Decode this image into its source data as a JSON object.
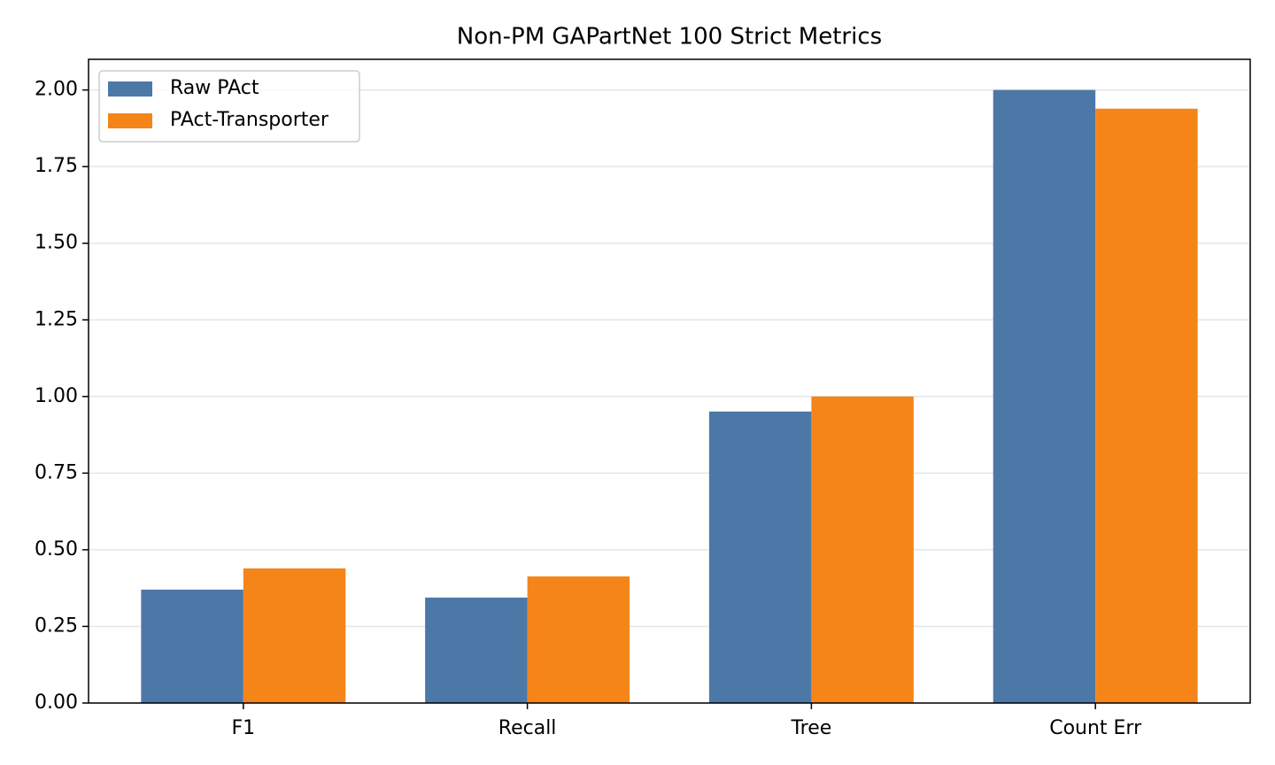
{
  "chart_data": {
    "type": "bar",
    "title": "Non-PM GAPartNet 100 Strict Metrics",
    "categories": [
      "F1",
      "Recall",
      "Tree",
      "Count Err"
    ],
    "series": [
      {
        "name": "Raw PAct",
        "color": "#4c78a8",
        "values": [
          0.37,
          0.344,
          0.951,
          2.0
        ]
      },
      {
        "name": "PAct-Transporter",
        "color": "#f58518",
        "values": [
          0.439,
          0.413,
          1.0,
          1.939
        ]
      }
    ],
    "ylim": [
      0,
      2.1
    ],
    "yticks": [
      {
        "value": 0,
        "label": "0.00"
      },
      {
        "value": 0.25,
        "label": "0.25"
      },
      {
        "value": 0.5,
        "label": "0.50"
      },
      {
        "value": 0.75,
        "label": "0.75"
      },
      {
        "value": 1.0,
        "label": "1.00"
      },
      {
        "value": 1.25,
        "label": "1.25"
      },
      {
        "value": 1.5,
        "label": "1.50"
      },
      {
        "value": 1.75,
        "label": "1.75"
      },
      {
        "value": 2.0,
        "label": "2.00"
      }
    ],
    "grid": true,
    "legend": "upper-left"
  }
}
